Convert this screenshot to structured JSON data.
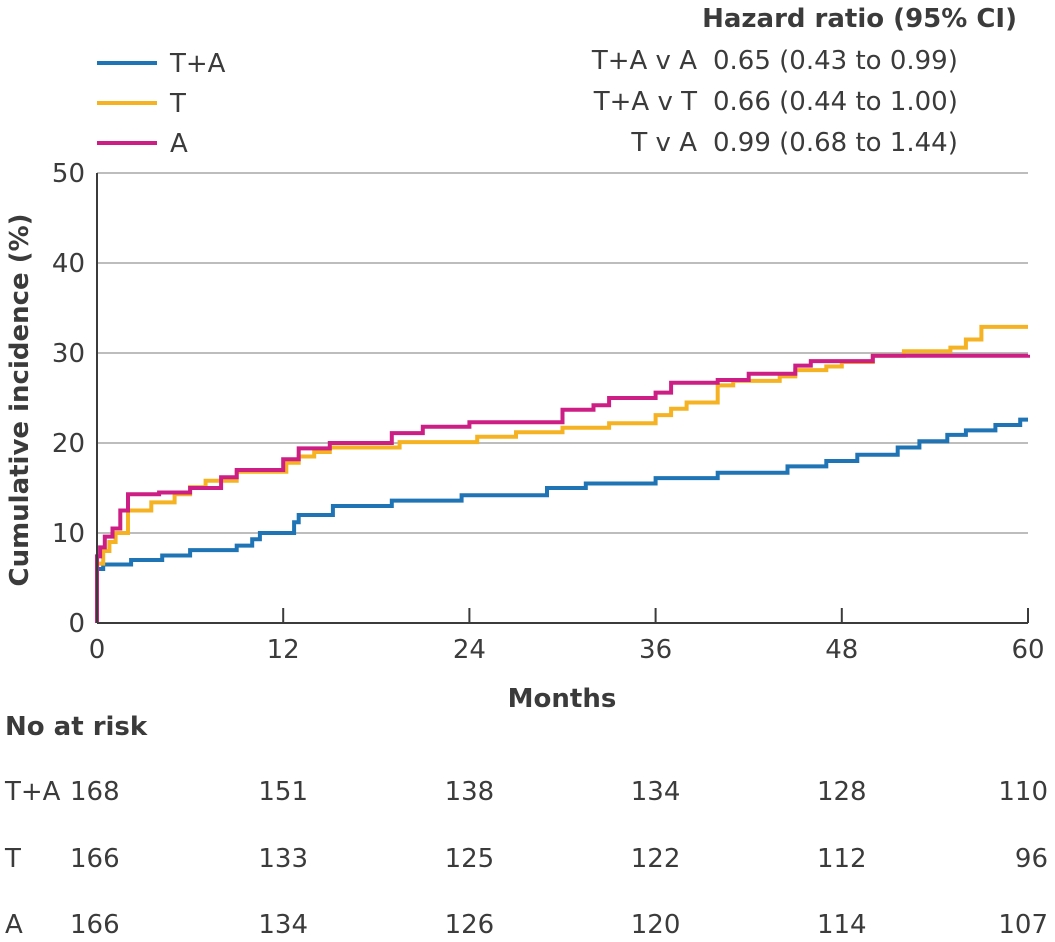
{
  "chart_data": {
    "type": "line",
    "xlabel": "Months",
    "ylabel": "Cumulative incidence (%)",
    "xlim": [
      0,
      60
    ],
    "ylim": [
      0,
      50
    ],
    "x_ticks": [
      0,
      12,
      24,
      36,
      48,
      60
    ],
    "y_ticks": [
      0,
      10,
      20,
      30,
      40,
      50
    ],
    "grid": "horizontal",
    "legend_position": "top-left",
    "series": [
      {
        "name": "T+A",
        "color": "#1f74b5",
        "points": [
          [
            0,
            0
          ],
          [
            0,
            6.0
          ],
          [
            0.4,
            6.5
          ],
          [
            2.2,
            7.0
          ],
          [
            4.2,
            7.5
          ],
          [
            6,
            8.1
          ],
          [
            9,
            8.6
          ],
          [
            10,
            9.3
          ],
          [
            10.5,
            10.0
          ],
          [
            12.7,
            11.2
          ],
          [
            13,
            12
          ],
          [
            15.2,
            13
          ],
          [
            19,
            13.6
          ],
          [
            23.5,
            14.2
          ],
          [
            29,
            15
          ],
          [
            31.5,
            15.5
          ],
          [
            36,
            16.1
          ],
          [
            40,
            16.7
          ],
          [
            44.5,
            17.4
          ],
          [
            47,
            18
          ],
          [
            49,
            18.7
          ],
          [
            51.6,
            19.5
          ],
          [
            53,
            20.2
          ],
          [
            54.8,
            20.9
          ],
          [
            56,
            21.4
          ],
          [
            57.9,
            22.0
          ],
          [
            59.5,
            22.6
          ],
          [
            60,
            22.6
          ]
        ]
      },
      {
        "name": "T",
        "color": "#f5b222",
        "points": [
          [
            0,
            0
          ],
          [
            0,
            6.6
          ],
          [
            0.4,
            8
          ],
          [
            0.8,
            9
          ],
          [
            1.2,
            10
          ],
          [
            2,
            12.5
          ],
          [
            3.5,
            13.4
          ],
          [
            5,
            14.3
          ],
          [
            6,
            15.1
          ],
          [
            7,
            15.8
          ],
          [
            9,
            16.8
          ],
          [
            12.2,
            17.8
          ],
          [
            13,
            18.5
          ],
          [
            14,
            19
          ],
          [
            15,
            19.5
          ],
          [
            19.5,
            20.1
          ],
          [
            24.5,
            20.7
          ],
          [
            27,
            21.2
          ],
          [
            30,
            21.7
          ],
          [
            33,
            22.2
          ],
          [
            36,
            23.1
          ],
          [
            37,
            23.8
          ],
          [
            38,
            24.5
          ],
          [
            40,
            26.4
          ],
          [
            41,
            26.9
          ],
          [
            44,
            27.4
          ],
          [
            45,
            28.1
          ],
          [
            47,
            28.5
          ],
          [
            48,
            29
          ],
          [
            50,
            29.7
          ],
          [
            52,
            30.2
          ],
          [
            55,
            30.6
          ],
          [
            56,
            31.5
          ],
          [
            57,
            32.9
          ],
          [
            60,
            32.9
          ]
        ]
      },
      {
        "name": "A",
        "color": "#cc1e84",
        "points": [
          [
            0,
            0
          ],
          [
            0,
            7.4
          ],
          [
            0.2,
            8.4
          ],
          [
            0.5,
            9.6
          ],
          [
            1,
            10.5
          ],
          [
            1.5,
            12.5
          ],
          [
            2,
            14.3
          ],
          [
            4,
            14.5
          ],
          [
            6,
            15
          ],
          [
            8,
            16.2
          ],
          [
            9,
            17
          ],
          [
            12,
            18.2
          ],
          [
            13,
            19.4
          ],
          [
            15,
            20
          ],
          [
            19,
            21.1
          ],
          [
            21,
            21.8
          ],
          [
            24,
            22.3
          ],
          [
            30,
            23.7
          ],
          [
            32,
            24.2
          ],
          [
            33,
            25
          ],
          [
            36,
            25.6
          ],
          [
            37,
            26.7
          ],
          [
            40,
            27
          ],
          [
            42,
            27.7
          ],
          [
            45,
            28.6
          ],
          [
            46,
            29.1
          ],
          [
            50,
            29.7
          ],
          [
            60,
            29.8
          ]
        ]
      }
    ],
    "hazard_ratio": {
      "title": "Hazard ratio (95% CI)",
      "rows": [
        {
          "comparison": "T+A v A",
          "value": "0.65 (0.43 to 0.99)"
        },
        {
          "comparison": "T+A v T",
          "value": "0.66 (0.44 to 1.00)"
        },
        {
          "comparison": "T v A",
          "value": "0.99 (0.68 to 1.44)"
        }
      ]
    },
    "risk_table": {
      "title": "No at risk",
      "rows": [
        {
          "group": "T+A",
          "values": [
            168,
            151,
            138,
            134,
            128,
            110
          ]
        },
        {
          "group": "T",
          "values": [
            166,
            133,
            125,
            122,
            112,
            96
          ]
        },
        {
          "group": "A",
          "values": [
            166,
            134,
            126,
            120,
            114,
            107
          ]
        }
      ]
    }
  }
}
